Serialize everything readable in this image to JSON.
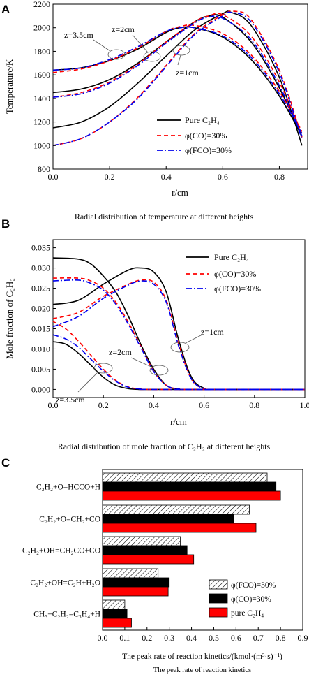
{
  "colors": {
    "pure": "#000000",
    "co": "#ff0000",
    "fco": "#0000ee",
    "axis": "#000000"
  },
  "chart_data": [
    {
      "panel": "A",
      "type": "line",
      "caption": "Radial distribution of temperature at different heights",
      "xlabel": "r/cm",
      "ylabel": "Temperature/K",
      "xlim": [
        0.0,
        0.9
      ],
      "ylim": [
        800,
        2200
      ],
      "xticks": [
        "0.0",
        "0.2",
        "0.4",
        "0.6",
        "0.8"
      ],
      "yticks": [
        "800",
        "1000",
        "1200",
        "1400",
        "1600",
        "1800",
        "2000",
        "2200"
      ],
      "legend": {
        "position": "bottom-right",
        "entries": [
          "Pure C₂H₄",
          "φ(CO)=30%",
          "φ(FCO)=30%"
        ]
      },
      "annotations": [
        "z=3.5cm",
        "z=2cm",
        "z=1cm"
      ],
      "series": [
        {
          "key": "pure",
          "height": "z=3.5cm",
          "x": [
            0,
            0.1,
            0.2,
            0.3,
            0.4,
            0.45,
            0.5,
            0.6,
            0.7,
            0.8,
            0.88
          ],
          "y": [
            1640,
            1660,
            1720,
            1820,
            1960,
            2000,
            2000,
            1920,
            1730,
            1420,
            1080
          ]
        },
        {
          "key": "pure",
          "height": "z=2cm",
          "x": [
            0,
            0.1,
            0.2,
            0.3,
            0.4,
            0.5,
            0.55,
            0.6,
            0.7,
            0.8,
            0.88
          ],
          "y": [
            1450,
            1480,
            1560,
            1700,
            1880,
            2050,
            2100,
            2090,
            1880,
            1490,
            1070
          ]
        },
        {
          "key": "pure",
          "height": "z=1cm",
          "x": [
            0,
            0.1,
            0.2,
            0.3,
            0.4,
            0.5,
            0.6,
            0.63,
            0.7,
            0.8,
            0.88
          ],
          "y": [
            1150,
            1200,
            1330,
            1530,
            1760,
            1980,
            2120,
            2130,
            2020,
            1580,
            1000
          ]
        },
        {
          "key": "co",
          "height": "z=3.5cm",
          "x": [
            0,
            0.1,
            0.2,
            0.3,
            0.4,
            0.45,
            0.5,
            0.6,
            0.7,
            0.8,
            0.88
          ],
          "y": [
            1620,
            1650,
            1720,
            1830,
            1970,
            2010,
            2020,
            1950,
            1770,
            1460,
            1120
          ]
        },
        {
          "key": "co",
          "height": "z=2cm",
          "x": [
            0,
            0.1,
            0.2,
            0.3,
            0.4,
            0.5,
            0.55,
            0.6,
            0.7,
            0.8,
            0.88
          ],
          "y": [
            1410,
            1450,
            1540,
            1690,
            1880,
            2050,
            2100,
            2110,
            1930,
            1540,
            1100
          ]
        },
        {
          "key": "co",
          "height": "z=1cm",
          "x": [
            0,
            0.1,
            0.2,
            0.3,
            0.4,
            0.5,
            0.6,
            0.64,
            0.7,
            0.8,
            0.88
          ],
          "y": [
            1000,
            1060,
            1200,
            1410,
            1680,
            1950,
            2110,
            2140,
            2070,
            1640,
            1070
          ]
        },
        {
          "key": "fco",
          "height": "z=3.5cm",
          "x": [
            0,
            0.1,
            0.2,
            0.3,
            0.4,
            0.45,
            0.5,
            0.6,
            0.7,
            0.8,
            0.88
          ],
          "y": [
            1640,
            1660,
            1730,
            1840,
            1970,
            2000,
            2000,
            1930,
            1750,
            1440,
            1100
          ]
        },
        {
          "key": "fco",
          "height": "z=2cm",
          "x": [
            0,
            0.1,
            0.2,
            0.3,
            0.4,
            0.5,
            0.55,
            0.6,
            0.7,
            0.8,
            0.88
          ],
          "y": [
            1410,
            1440,
            1530,
            1680,
            1870,
            2040,
            2090,
            2080,
            1900,
            1510,
            1080
          ]
        },
        {
          "key": "fco",
          "height": "z=1cm",
          "x": [
            0,
            0.1,
            0.2,
            0.3,
            0.4,
            0.5,
            0.6,
            0.63,
            0.7,
            0.8,
            0.88
          ],
          "y": [
            1000,
            1060,
            1200,
            1400,
            1670,
            1940,
            2100,
            2130,
            2050,
            1620,
            1050
          ]
        }
      ]
    },
    {
      "panel": "B",
      "type": "line",
      "caption": "Radial distribution of mole fraction of C₂H₂ at different heights",
      "xlabel": "r/cm",
      "ylabel": "Mole fraction of C₂H₂",
      "xlim": [
        0.0,
        1.0
      ],
      "ylim": [
        -0.002,
        0.037
      ],
      "xticks": [
        "0.0",
        "0.2",
        "0.4",
        "0.6",
        "0.8",
        "1.0"
      ],
      "yticks": [
        "0.000",
        "0.005",
        "0.010",
        "0.015",
        "0.020",
        "0.025",
        "0.030",
        "0.035"
      ],
      "legend": {
        "position": "top-right",
        "entries": [
          "Pure C₂H₄",
          "φ(CO)=30%",
          "φ(FCO)=30%"
        ]
      },
      "annotations": [
        "z=1cm",
        "z=2cm",
        "z=3.5cm"
      ],
      "series": [
        {
          "key": "pure",
          "height": "z=1cm",
          "x": [
            0,
            0.1,
            0.2,
            0.3,
            0.35,
            0.4,
            0.45,
            0.5,
            0.55,
            0.6,
            0.65,
            1.0
          ],
          "y": [
            0.021,
            0.022,
            0.026,
            0.0295,
            0.03,
            0.029,
            0.024,
            0.012,
            0.003,
            0.0003,
            0,
            0
          ]
        },
        {
          "key": "pure",
          "height": "z=2cm",
          "x": [
            0,
            0.1,
            0.15,
            0.2,
            0.25,
            0.3,
            0.35,
            0.4,
            0.45,
            0.5,
            0.55,
            1.0
          ],
          "y": [
            0.0325,
            0.0322,
            0.031,
            0.028,
            0.024,
            0.018,
            0.011,
            0.005,
            0.001,
            0.0001,
            0,
            0
          ]
        },
        {
          "key": "pure",
          "height": "z=3.5cm",
          "x": [
            0,
            0.05,
            0.1,
            0.15,
            0.2,
            0.25,
            0.3,
            0.35,
            0.4,
            1.0
          ],
          "y": [
            0.0118,
            0.0112,
            0.009,
            0.006,
            0.003,
            0.001,
            0.0002,
            0,
            0,
            0
          ]
        },
        {
          "key": "co",
          "height": "z=1cm",
          "x": [
            0,
            0.1,
            0.2,
            0.3,
            0.35,
            0.4,
            0.45,
            0.5,
            0.55,
            0.6,
            0.65,
            1.0
          ],
          "y": [
            0.0175,
            0.019,
            0.023,
            0.026,
            0.027,
            0.0265,
            0.022,
            0.011,
            0.0025,
            0.0002,
            0,
            0
          ]
        },
        {
          "key": "co",
          "height": "z=2cm",
          "x": [
            0,
            0.1,
            0.15,
            0.2,
            0.25,
            0.3,
            0.35,
            0.4,
            0.45,
            0.5,
            0.55,
            1.0
          ],
          "y": [
            0.0275,
            0.0275,
            0.0268,
            0.025,
            0.0215,
            0.0165,
            0.0105,
            0.0045,
            0.001,
            0.0001,
            0,
            0
          ]
        },
        {
          "key": "co",
          "height": "z=3.5cm",
          "x": [
            0,
            0.05,
            0.1,
            0.15,
            0.2,
            0.25,
            0.3,
            0.35,
            0.4,
            1.0
          ],
          "y": [
            0.0168,
            0.015,
            0.012,
            0.0085,
            0.005,
            0.0022,
            0.0006,
            0.0001,
            0,
            0
          ]
        },
        {
          "key": "fco",
          "height": "z=1cm",
          "x": [
            0,
            0.1,
            0.2,
            0.3,
            0.35,
            0.4,
            0.45,
            0.5,
            0.55,
            0.6,
            0.65,
            1.0
          ],
          "y": [
            0.0155,
            0.018,
            0.0225,
            0.0258,
            0.0268,
            0.026,
            0.0215,
            0.0105,
            0.0025,
            0.0002,
            0,
            0
          ]
        },
        {
          "key": "fco",
          "height": "z=2cm",
          "x": [
            0,
            0.1,
            0.15,
            0.2,
            0.25,
            0.3,
            0.35,
            0.4,
            0.45,
            0.5,
            0.55,
            1.0
          ],
          "y": [
            0.0268,
            0.027,
            0.0262,
            0.0245,
            0.021,
            0.016,
            0.0102,
            0.0044,
            0.001,
            0.0001,
            0,
            0
          ]
        },
        {
          "key": "fco",
          "height": "z=3.5cm",
          "x": [
            0,
            0.05,
            0.1,
            0.15,
            0.2,
            0.25,
            0.3,
            0.35,
            0.4,
            1.0
          ],
          "y": [
            0.0135,
            0.0125,
            0.0105,
            0.0075,
            0.0045,
            0.002,
            0.0005,
            0.0001,
            0,
            0
          ]
        }
      ]
    },
    {
      "panel": "C",
      "type": "bar",
      "orientation": "horizontal",
      "caption": "The peak rate of reaction kinetics",
      "xlabel": "The peak rate of reaction kinetics/(kmol·(m³·s)⁻¹)",
      "xlim": [
        0.0,
        0.9
      ],
      "xticks": [
        "0.0",
        "0.1",
        "0.2",
        "0.3",
        "0.4",
        "0.5",
        "0.6",
        "0.7",
        "0.8",
        "0.9"
      ],
      "categories": [
        "C₂H₂+O=HCCO+H",
        "C₂H₂+O=CH₂+CO",
        "C₂H₂+OH=CH₂CO+CO",
        "C₂H₂+OH=C₂H+H₂O",
        "CH₃+C₂H₂=C₃H₄+H"
      ],
      "legend": {
        "position": "bottom-right"
      },
      "series": [
        {
          "name": "φ(FCO)=30%",
          "key": "fco",
          "values": [
            0.74,
            0.66,
            0.35,
            0.25,
            0.1
          ]
        },
        {
          "name": "φ(CO)=30%",
          "key": "co",
          "values": [
            0.78,
            0.59,
            0.38,
            0.3,
            0.11
          ]
        },
        {
          "name": "pure C₂H₄",
          "key": "pure",
          "values": [
            0.8,
            0.69,
            0.41,
            0.295,
            0.13
          ]
        }
      ]
    }
  ],
  "panel_labels": {
    "a": "A",
    "b": "B",
    "c": "C"
  }
}
